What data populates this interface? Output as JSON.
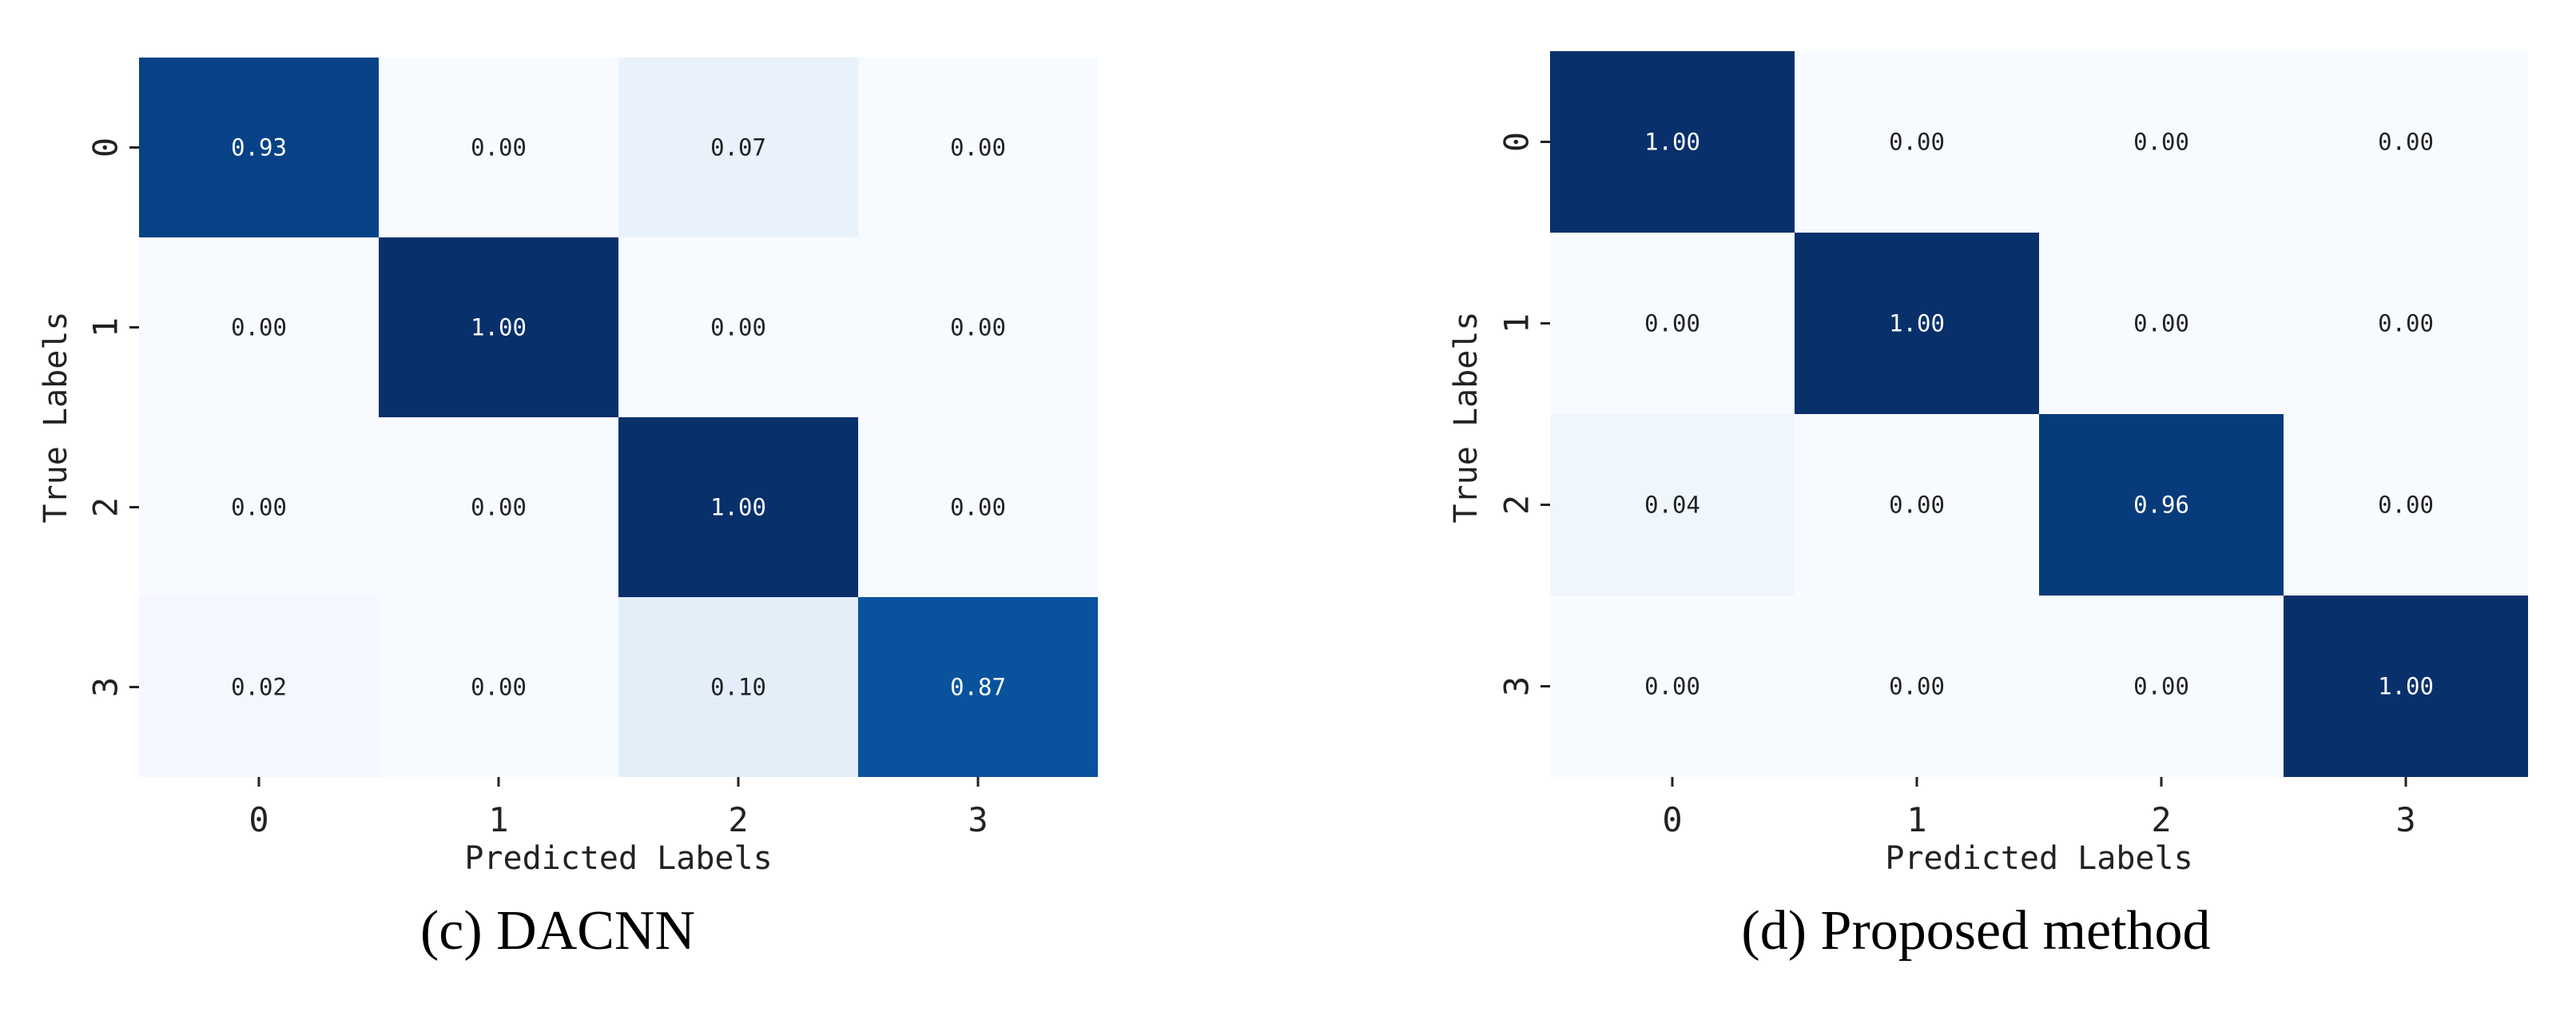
{
  "chart_data": [
    {
      "type": "heatmap",
      "caption": "(c) DACNN",
      "xlabel": "Predicted Labels",
      "ylabel": "True Labels",
      "x_ticks": [
        "0",
        "1",
        "2",
        "3"
      ],
      "y_ticks": [
        "0",
        "1",
        "2",
        "3"
      ],
      "colormap": "Blues",
      "value_range": [
        0,
        1
      ],
      "matrix": [
        [
          0.93,
          0.0,
          0.07,
          0.0
        ],
        [
          0.0,
          1.0,
          0.0,
          0.0
        ],
        [
          0.0,
          0.0,
          1.0,
          0.0
        ],
        [
          0.02,
          0.0,
          0.1,
          0.87
        ]
      ],
      "cell_labels": [
        [
          "0.93",
          "0.00",
          "0.07",
          "0.00"
        ],
        [
          "0.00",
          "1.00",
          "0.00",
          "0.00"
        ],
        [
          "0.00",
          "0.00",
          "1.00",
          "0.00"
        ],
        [
          "0.02",
          "0.00",
          "0.10",
          "0.87"
        ]
      ]
    },
    {
      "type": "heatmap",
      "caption": "(d) Proposed method",
      "xlabel": "Predicted Labels",
      "ylabel": "True Labels",
      "x_ticks": [
        "0",
        "1",
        "2",
        "3"
      ],
      "y_ticks": [
        "0",
        "1",
        "2",
        "3"
      ],
      "colormap": "Blues",
      "value_range": [
        0,
        1
      ],
      "matrix": [
        [
          1.0,
          0.0,
          0.0,
          0.0
        ],
        [
          0.0,
          1.0,
          0.0,
          0.0
        ],
        [
          0.04,
          0.0,
          0.96,
          0.0
        ],
        [
          0.0,
          0.0,
          0.0,
          1.0
        ]
      ],
      "cell_labels": [
        [
          "1.00",
          "0.00",
          "0.00",
          "0.00"
        ],
        [
          "0.00",
          "1.00",
          "0.00",
          "0.00"
        ],
        [
          "0.04",
          "0.00",
          "0.96",
          "0.00"
        ],
        [
          "0.00",
          "0.00",
          "0.00",
          "1.00"
        ]
      ]
    }
  ]
}
